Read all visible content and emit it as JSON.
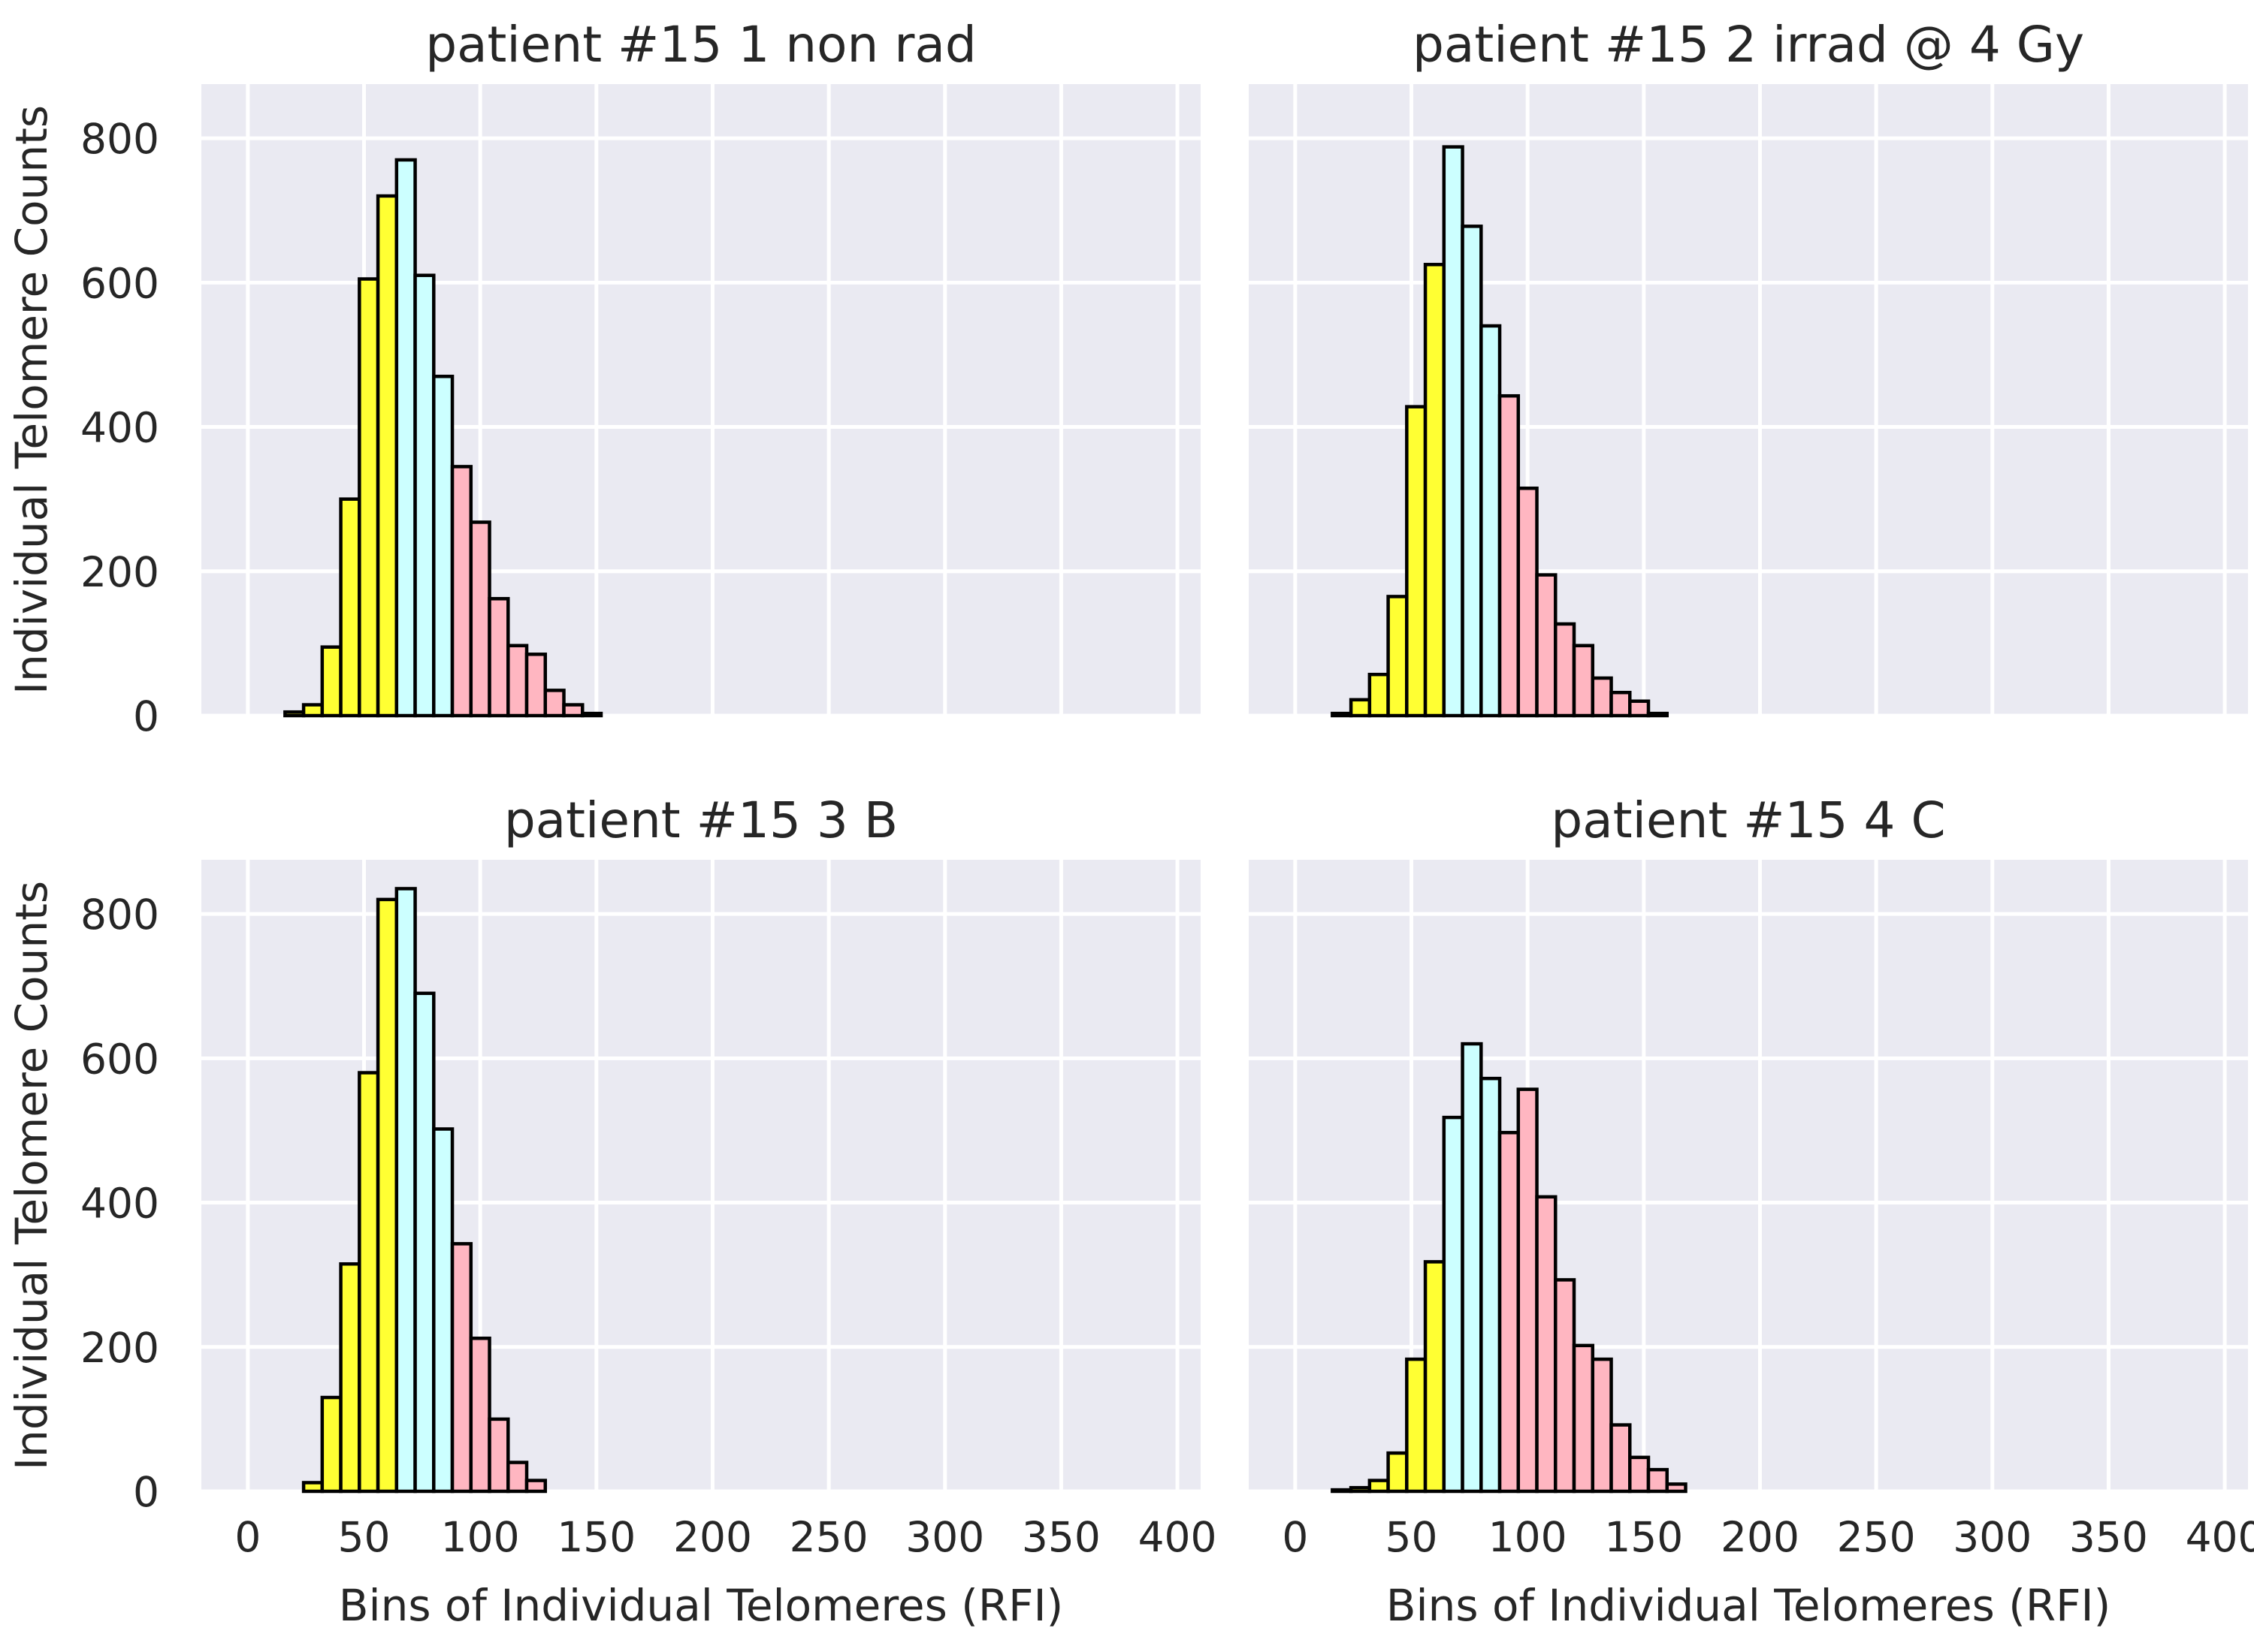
{
  "chart_data": [
    {
      "type": "bar",
      "title": "patient #15 1 non rad",
      "xlabel": "",
      "ylabel": "Individual Telomere Counts",
      "xlim": [
        -20,
        410
      ],
      "ylim": [
        0,
        875
      ],
      "xticks": [
        "0",
        "50",
        "100",
        "150",
        "200",
        "250",
        "300",
        "350",
        "400"
      ],
      "yticks": [
        "0",
        "200",
        "400",
        "600",
        "800"
      ],
      "bin_width": 8,
      "bins": [
        {
          "x": 16,
          "value": 5,
          "color": "#ffff33"
        },
        {
          "x": 24,
          "value": 15,
          "color": "#ffff33"
        },
        {
          "x": 32,
          "value": 95,
          "color": "#ffff33"
        },
        {
          "x": 40,
          "value": 300,
          "color": "#ffff33"
        },
        {
          "x": 48,
          "value": 605,
          "color": "#ffff33"
        },
        {
          "x": 56,
          "value": 720,
          "color": "#ffff33"
        },
        {
          "x": 64,
          "value": 770,
          "color": "#ccffff"
        },
        {
          "x": 72,
          "value": 610,
          "color": "#ccffff"
        },
        {
          "x": 80,
          "value": 470,
          "color": "#ccffff"
        },
        {
          "x": 88,
          "value": 345,
          "color": "#ffb6c1"
        },
        {
          "x": 96,
          "value": 268,
          "color": "#ffb6c1"
        },
        {
          "x": 104,
          "value": 162,
          "color": "#ffb6c1"
        },
        {
          "x": 112,
          "value": 97,
          "color": "#ffb6c1"
        },
        {
          "x": 120,
          "value": 85,
          "color": "#ffb6c1"
        },
        {
          "x": 128,
          "value": 35,
          "color": "#ffb6c1"
        },
        {
          "x": 136,
          "value": 15,
          "color": "#ffb6c1"
        },
        {
          "x": 144,
          "value": 3,
          "color": "#ffb6c1"
        }
      ]
    },
    {
      "type": "bar",
      "title": "patient #15 2 irrad @ 4 Gy",
      "xlabel": "",
      "ylabel": "",
      "xlim": [
        -20,
        410
      ],
      "ylim": [
        0,
        875
      ],
      "xticks": [
        "0",
        "50",
        "100",
        "150",
        "200",
        "250",
        "300",
        "350",
        "400"
      ],
      "yticks": [
        "0",
        "200",
        "400",
        "600",
        "800"
      ],
      "bin_width": 8,
      "bins": [
        {
          "x": 16,
          "value": 3,
          "color": "#ffff33"
        },
        {
          "x": 24,
          "value": 22,
          "color": "#ffff33"
        },
        {
          "x": 32,
          "value": 57,
          "color": "#ffff33"
        },
        {
          "x": 40,
          "value": 165,
          "color": "#ffff33"
        },
        {
          "x": 48,
          "value": 428,
          "color": "#ffff33"
        },
        {
          "x": 56,
          "value": 625,
          "color": "#ffff33"
        },
        {
          "x": 64,
          "value": 788,
          "color": "#ccffff"
        },
        {
          "x": 72,
          "value": 678,
          "color": "#ccffff"
        },
        {
          "x": 80,
          "value": 540,
          "color": "#ccffff"
        },
        {
          "x": 88,
          "value": 443,
          "color": "#ffb6c1"
        },
        {
          "x": 96,
          "value": 315,
          "color": "#ffb6c1"
        },
        {
          "x": 104,
          "value": 195,
          "color": "#ffb6c1"
        },
        {
          "x": 112,
          "value": 127,
          "color": "#ffb6c1"
        },
        {
          "x": 120,
          "value": 97,
          "color": "#ffb6c1"
        },
        {
          "x": 128,
          "value": 52,
          "color": "#ffb6c1"
        },
        {
          "x": 136,
          "value": 32,
          "color": "#ffb6c1"
        },
        {
          "x": 144,
          "value": 20,
          "color": "#ffb6c1"
        },
        {
          "x": 152,
          "value": 3,
          "color": "#ffb6c1"
        }
      ]
    },
    {
      "type": "bar",
      "title": "patient #15 3 B",
      "xlabel": "Bins of Individual Telomeres (RFI)",
      "ylabel": "Individual Telomere Counts",
      "xlim": [
        -20,
        410
      ],
      "ylim": [
        0,
        875
      ],
      "xticks": [
        "0",
        "50",
        "100",
        "150",
        "200",
        "250",
        "300",
        "350",
        "400"
      ],
      "yticks": [
        "0",
        "200",
        "400",
        "600",
        "800"
      ],
      "bin_width": 8,
      "bins": [
        {
          "x": 24,
          "value": 12,
          "color": "#ffff33"
        },
        {
          "x": 32,
          "value": 130,
          "color": "#ffff33"
        },
        {
          "x": 40,
          "value": 315,
          "color": "#ffff33"
        },
        {
          "x": 48,
          "value": 580,
          "color": "#ffff33"
        },
        {
          "x": 56,
          "value": 820,
          "color": "#ffff33"
        },
        {
          "x": 64,
          "value": 835,
          "color": "#ccffff"
        },
        {
          "x": 72,
          "value": 690,
          "color": "#ccffff"
        },
        {
          "x": 80,
          "value": 502,
          "color": "#ccffff"
        },
        {
          "x": 88,
          "value": 343,
          "color": "#ffb6c1"
        },
        {
          "x": 96,
          "value": 212,
          "color": "#ffb6c1"
        },
        {
          "x": 104,
          "value": 100,
          "color": "#ffb6c1"
        },
        {
          "x": 112,
          "value": 40,
          "color": "#ffb6c1"
        },
        {
          "x": 120,
          "value": 15,
          "color": "#ffb6c1"
        }
      ]
    },
    {
      "type": "bar",
      "title": "patient #15 4 C",
      "xlabel": "Bins of Individual Telomeres (RFI)",
      "ylabel": "",
      "xlim": [
        -20,
        410
      ],
      "ylim": [
        0,
        875
      ],
      "xticks": [
        "0",
        "50",
        "100",
        "150",
        "200",
        "250",
        "300",
        "350",
        "400"
      ],
      "yticks": [
        "0",
        "200",
        "400",
        "600",
        "800"
      ],
      "bin_width": 8,
      "bins": [
        {
          "x": 16,
          "value": 2,
          "color": "#ffff33"
        },
        {
          "x": 24,
          "value": 5,
          "color": "#ffff33"
        },
        {
          "x": 32,
          "value": 15,
          "color": "#ffff33"
        },
        {
          "x": 40,
          "value": 53,
          "color": "#ffff33"
        },
        {
          "x": 48,
          "value": 183,
          "color": "#ffff33"
        },
        {
          "x": 56,
          "value": 318,
          "color": "#ffff33"
        },
        {
          "x": 64,
          "value": 518,
          "color": "#ccffff"
        },
        {
          "x": 72,
          "value": 620,
          "color": "#ccffff"
        },
        {
          "x": 80,
          "value": 572,
          "color": "#ccffff"
        },
        {
          "x": 88,
          "value": 497,
          "color": "#ffb6c1"
        },
        {
          "x": 96,
          "value": 557,
          "color": "#ffb6c1"
        },
        {
          "x": 104,
          "value": 408,
          "color": "#ffb6c1"
        },
        {
          "x": 112,
          "value": 293,
          "color": "#ffb6c1"
        },
        {
          "x": 120,
          "value": 202,
          "color": "#ffb6c1"
        },
        {
          "x": 128,
          "value": 183,
          "color": "#ffb6c1"
        },
        {
          "x": 136,
          "value": 92,
          "color": "#ffb6c1"
        },
        {
          "x": 144,
          "value": 47,
          "color": "#ffb6c1"
        },
        {
          "x": 152,
          "value": 30,
          "color": "#ffb6c1"
        },
        {
          "x": 160,
          "value": 10,
          "color": "#ffb6c1"
        }
      ]
    }
  ],
  "style": {
    "plot_background": "#eaeaf2",
    "grid_color": "#ffffff",
    "bar_edge": "#000000",
    "text_color": "#262626"
  }
}
